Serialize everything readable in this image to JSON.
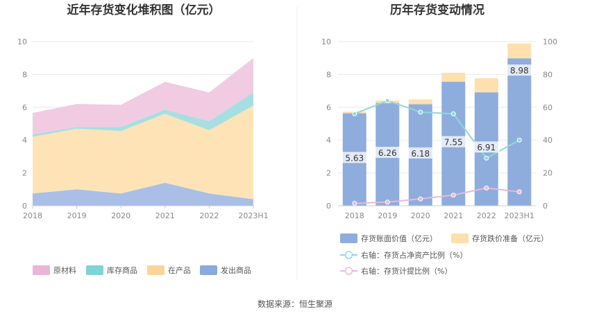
{
  "source_label": "数据来源：恒生聚源",
  "chart_data": [
    {
      "type": "area",
      "title": "近年存货变化堆积图（亿元）",
      "categories": [
        "2018",
        "2019",
        "2020",
        "2021",
        "2022",
        "2023H1"
      ],
      "ylim": [
        0,
        10
      ],
      "yticks": [
        0,
        2,
        4,
        6,
        8,
        10
      ],
      "stacked": true,
      "grid": true,
      "legend": "bottom",
      "series": [
        {
          "name": "发出商品",
          "color": "#a9bfe6",
          "values": [
            0.75,
            1.0,
            0.75,
            1.4,
            0.75,
            0.4
          ]
        },
        {
          "name": "在产品",
          "color": "#fde3b6",
          "values": [
            3.45,
            3.7,
            3.8,
            4.2,
            3.85,
            5.7
          ]
        },
        {
          "name": "库存商品",
          "color": "#a6dfe2",
          "values": [
            0.15,
            0.1,
            0.25,
            0.25,
            0.55,
            0.8
          ]
        },
        {
          "name": "原材料",
          "color": "#f0cbe2",
          "values": [
            1.3,
            1.4,
            1.35,
            1.7,
            1.75,
            2.1
          ]
        }
      ],
      "legend_order": [
        "原材料",
        "库存商品",
        "在产品",
        "发出商品"
      ],
      "legend_colors": {
        "原材料": "#e9b6d7",
        "库存商品": "#7fd3d6",
        "在产品": "#fcd49a",
        "发出商品": "#8aaadb"
      }
    },
    {
      "type": "bar",
      "title": "历年存货变动情况",
      "categories": [
        "2018",
        "2019",
        "2020",
        "2021",
        "2022",
        "2023H1"
      ],
      "ylim": [
        0,
        10
      ],
      "yticks": [
        0,
        2,
        4,
        6,
        8,
        10
      ],
      "y2lim": [
        0,
        100
      ],
      "y2ticks": [
        0,
        20,
        40,
        60,
        80,
        100
      ],
      "grid": true,
      "legend": "bottom",
      "series": [
        {
          "name": "存货账面价值（亿元）",
          "type": "bar",
          "color": "#8eaddc",
          "values": [
            5.63,
            6.26,
            6.18,
            7.55,
            6.91,
            8.98
          ],
          "labels": [
            "5.63",
            "6.26",
            "6.18",
            "7.55",
            "6.91",
            "8.98"
          ]
        },
        {
          "name": "存货跌价准备（亿元）",
          "type": "bar",
          "color": "#fde0ae",
          "values": [
            0.1,
            0.15,
            0.3,
            0.55,
            0.85,
            0.9
          ]
        },
        {
          "name": "右轴：存货占净资产比例（%）",
          "type": "line",
          "axis": "right",
          "color": "#8fd8dc",
          "values": [
            56,
            64,
            57,
            56,
            29,
            40
          ]
        },
        {
          "name": "右轴：存货计提比例（%）",
          "type": "line",
          "axis": "right",
          "color": "#e8b9d9",
          "values": [
            1.5,
            2.2,
            4.2,
            6.5,
            10.8,
            8.5
          ]
        }
      ]
    }
  ]
}
